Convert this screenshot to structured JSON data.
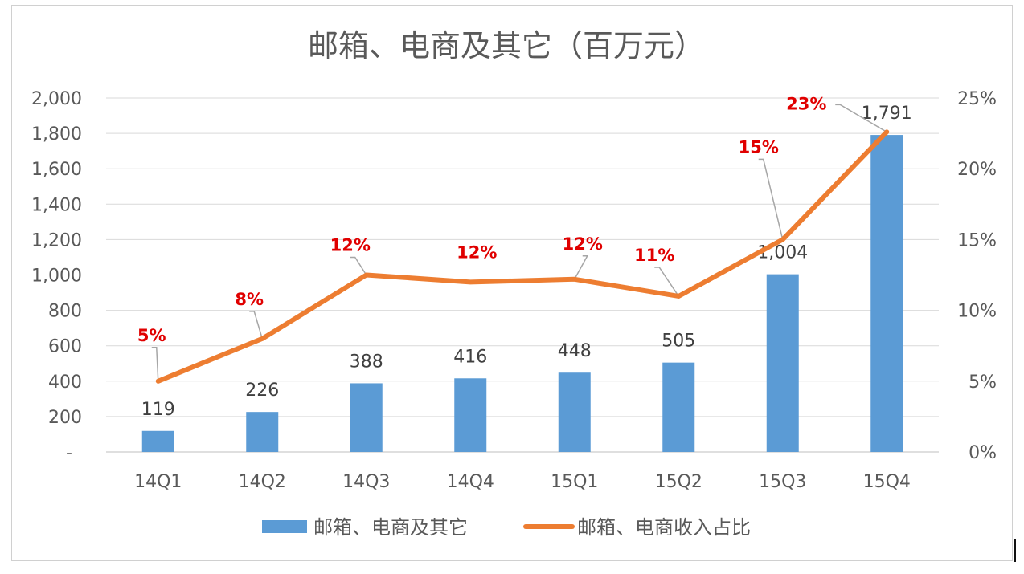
{
  "chart_data": {
    "type": "bar",
    "title": "邮箱、电商及其它（百万元）",
    "categories": [
      "14Q1",
      "14Q2",
      "14Q3",
      "14Q4",
      "15Q1",
      "15Q2",
      "15Q3",
      "15Q4"
    ],
    "series": [
      {
        "name": "邮箱、电商及其它",
        "type": "bar",
        "axis": "left",
        "color": "#5b9bd5",
        "values": [
          119,
          226,
          388,
          416,
          448,
          505,
          1004,
          1791
        ],
        "labels": [
          "119",
          "226",
          "388",
          "416",
          "448",
          "505",
          "1,004",
          "1,791"
        ]
      },
      {
        "name": "邮箱、电商收入占比",
        "type": "line",
        "axis": "right",
        "color": "#ed7d31",
        "values": [
          5,
          8,
          12.5,
          12,
          12.2,
          11,
          15,
          22.6
        ],
        "labels": [
          "5%",
          "8%",
          "12%",
          "12%",
          "12%",
          "11%",
          "15%",
          "23%"
        ]
      }
    ],
    "y_left": {
      "lim": [
        0,
        2000
      ],
      "ticks": [
        0,
        200,
        400,
        600,
        800,
        1000,
        1200,
        1400,
        1600,
        1800,
        2000
      ],
      "tick_labels": [
        "-",
        "200",
        "400",
        "600",
        "800",
        "1,000",
        "1,200",
        "1,400",
        "1,600",
        "1,800",
        "2,000"
      ]
    },
    "y_right": {
      "lim": [
        0,
        25
      ],
      "ticks": [
        0,
        5,
        10,
        15,
        20,
        25
      ],
      "tick_labels": [
        "0%",
        "5%",
        "10%",
        "15%",
        "20%",
        "25%"
      ]
    },
    "grid": true,
    "legend": "bottom",
    "label_color": "#e00000"
  }
}
